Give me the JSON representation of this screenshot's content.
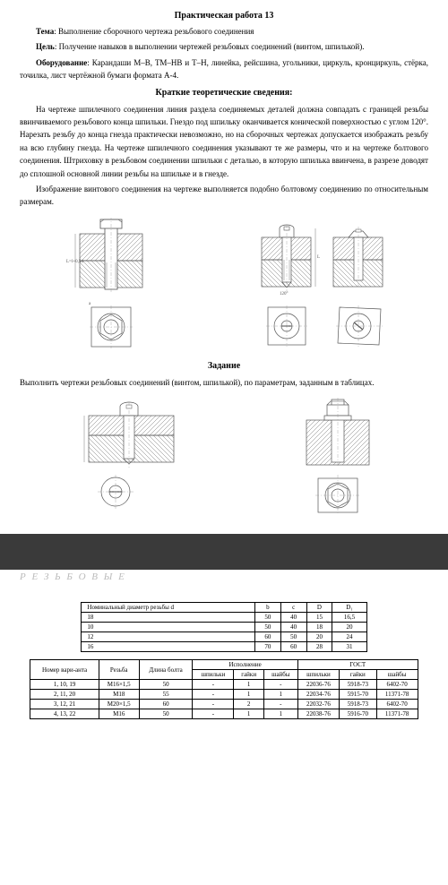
{
  "header": {
    "title": "Практическая работа 13",
    "topic_label": "Тема",
    "topic": ": Выполнение сборочного чертежа резьбового соединения",
    "goal_label": "Цель",
    "goal": ": Получение навыков в выполнении чертежей резьбовых соединений (винтом, шпилькой).",
    "equip_label": "Оборудование",
    "equip": ": Карандаши М–В, ТМ–НВ и Т–Н, линейка, рейсшина, угольники, циркуль, кронциркуль, стёрка, точилка, лист чертёжной бумаги формата А-4.",
    "theory_title": "Краткие теоретические сведения:"
  },
  "theory": {
    "p1": "На чертеже шпилечного соединения линия раздела соединяемых деталей должна совпадать с границей резьбы ввинчиваемого резьбового конца шпильки. Гнездо под шпильку оканчивается конической поверхностью с углом 120°. Нарезать резьбу до конца гнезда практически невозможно, но на сборочных чертежах допускается изображать резьбу на всю глубину гнезда. На чертеже шпилечного соединения указывают те же размеры, что и на чертеже болтового соединения. Штриховку в резьбовом соединении шпильки с деталью, в которую шпилька ввинчена, в разрезе доводят до сплошной основной линии резьбы на шпильке и в гнезде.",
    "p2": "Изображение винтового соединения на чертеже выполняется подобно болтовому соединению по относительным размерам."
  },
  "task": {
    "title": "Задание",
    "text": "Выполнить чертежи резьбовых соединений (винтом, шпилькой), по параметрам, заданным в таблицах."
  },
  "faded": "Р Е З Ь Б О В Ы Е",
  "table1": {
    "headers": [
      "Номинальный диаметр резьбы d",
      "b",
      "c",
      "D",
      "D₁"
    ],
    "rows": [
      [
        "18",
        "50",
        "40",
        "15",
        "16,5"
      ],
      [
        "10",
        "50",
        "40",
        "18",
        "20"
      ],
      [
        "12",
        "60",
        "50",
        "20",
        "24"
      ],
      [
        "16",
        "70",
        "60",
        "28",
        "31"
      ]
    ]
  },
  "table2": {
    "h_variant": "Номер вари-анта",
    "h_thread": "Резьба",
    "h_len": "Длина болта",
    "h_exec": "Исполнение",
    "h_gost": "ГОСТ",
    "sub": [
      "шпильки",
      "гайки",
      "шайбы",
      "шпильки",
      "гайки",
      "шайбы"
    ],
    "rows": [
      [
        "1, 10, 19",
        "М16×1,5",
        "50",
        "-",
        "1",
        "-",
        "22036-76",
        "5918-73",
        "6402-70"
      ],
      [
        "2, 11, 20",
        "М18",
        "55",
        "-",
        "1",
        "1",
        "22034-76",
        "5915-70",
        "11371-78"
      ],
      [
        "3, 12, 21",
        "М20×1,5",
        "60",
        "-",
        "2",
        "-",
        "22032-76",
        "5918-73",
        "6402-70"
      ],
      [
        "4, 13, 22",
        "М16",
        "50",
        "-",
        "1",
        "1",
        "22038-76",
        "5916-70",
        "11371-78"
      ]
    ]
  },
  "figures": {
    "stroke": "#555555",
    "hatch": "#777777",
    "thin": "#999999"
  }
}
